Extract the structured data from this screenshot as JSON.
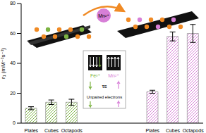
{
  "chart_data": {
    "type": "bar",
    "y_label": "r₁ (mM⁻¹s⁻¹)",
    "categories": [
      "Plates",
      "Cubes",
      "Octapods",
      null,
      null,
      null,
      "Plates",
      "Cubes",
      "Octapods"
    ],
    "values": [
      10,
      14,
      14,
      null,
      null,
      null,
      21,
      58,
      60
    ],
    "errors": [
      1,
      1.5,
      2,
      null,
      null,
      null,
      1,
      3,
      6
    ],
    "colors": [
      "#7cb342",
      "#7cb342",
      "#7cb342",
      "#7cb342",
      "#d77fd7",
      "#d77fd7",
      "#d77fd7",
      "#d77fd7",
      "#d77fd7"
    ],
    "ylim": [
      0,
      80
    ],
    "yticks": [
      0,
      20,
      40,
      60,
      80
    ],
    "grid": false,
    "annotations": [
      "Mn²⁺",
      "Fe³⁺",
      "Mn²⁺",
      "τs",
      "Unpaired electrons"
    ]
  }
}
